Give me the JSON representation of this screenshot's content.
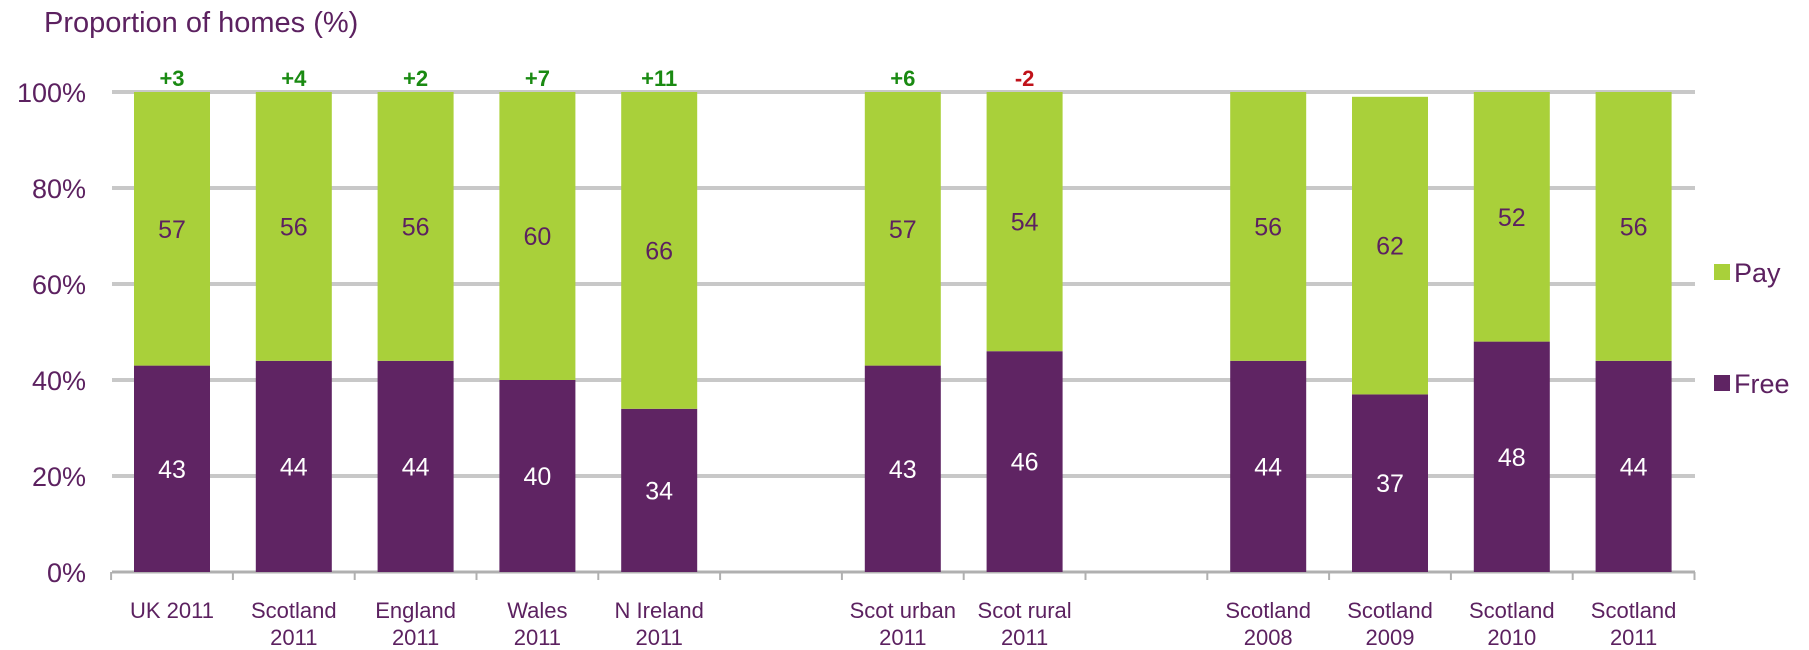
{
  "chart_data": {
    "type": "bar",
    "stacked": true,
    "ylabel": "Proportion of homes (%)",
    "ylim": [
      0,
      100
    ],
    "yticks": [
      "0%",
      "20%",
      "40%",
      "60%",
      "80%",
      "100%"
    ],
    "grid": true,
    "legend_position": "right",
    "groups": [
      {
        "categories": [
          [
            "UK 2011"
          ],
          [
            "Scotland",
            "2011"
          ],
          [
            "England",
            "2011"
          ],
          [
            "Wales",
            "2011"
          ],
          [
            "N Ireland",
            "2011"
          ]
        ],
        "free": [
          43,
          44,
          44,
          40,
          34
        ],
        "pay": [
          57,
          56,
          56,
          60,
          66
        ],
        "change": [
          "+3",
          "+4",
          "+2",
          "+7",
          "+11"
        ]
      },
      {
        "categories": [
          [
            "Scot urban",
            "2011"
          ],
          [
            "Scot rural",
            "2011"
          ]
        ],
        "free": [
          43,
          46
        ],
        "pay": [
          57,
          54
        ],
        "change": [
          "+6",
          "-2"
        ]
      },
      {
        "categories": [
          [
            "Scotland",
            "2008"
          ],
          [
            "Scotland",
            "2009"
          ],
          [
            "Scotland",
            "2010"
          ],
          [
            "Scotland",
            "2011"
          ]
        ],
        "free": [
          44,
          37,
          48,
          44
        ],
        "pay": [
          56,
          62,
          52,
          56
        ],
        "change": [
          "",
          "",
          "",
          ""
        ]
      }
    ],
    "series": [
      {
        "name": "Pay",
        "color": "#a9d03a"
      },
      {
        "name": "Free",
        "color": "#5f2463"
      }
    ],
    "colors": {
      "positive_change": "#1a8a12",
      "negative_change": "#c0121a",
      "axis_text": "#5c2160",
      "grid": "#c8c8c8"
    }
  },
  "legend": {
    "pay_label": "Pay",
    "free_label": "Free"
  }
}
